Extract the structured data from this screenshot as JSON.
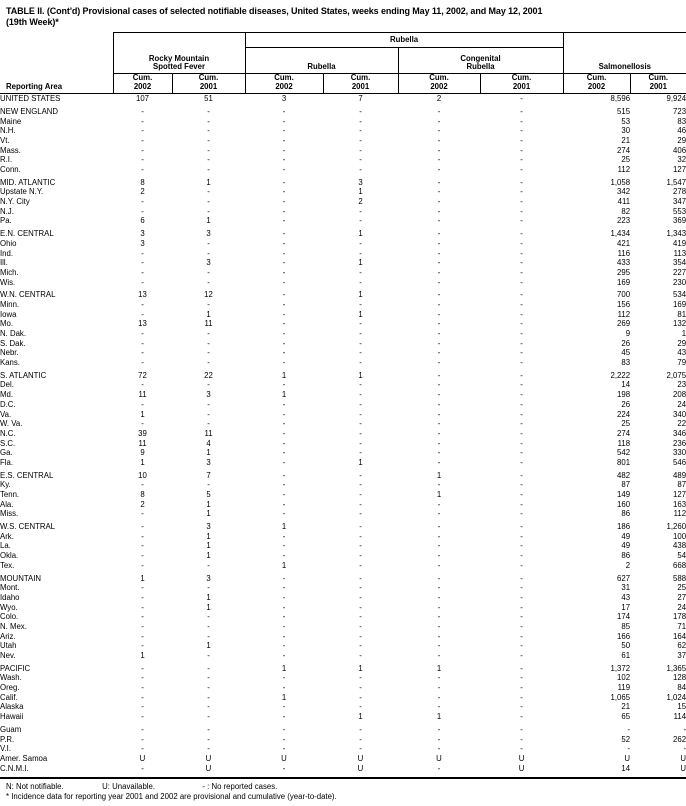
{
  "title": {
    "line1": "TABLE II. (Cont'd) Provisional cases of selected notifiable diseases, United States, weeks ending May 11, 2002, and May 12, 2001",
    "line2": "(19th Week)*"
  },
  "header": {
    "reporting_area": "Reporting Area",
    "rubella_span": "Rubella",
    "rmsf_l1": "Rocky Mountain",
    "rmsf_l2": "Spotted Fever",
    "rubella": "Rubella",
    "crub_l1": "Congenital",
    "crub_l2": "Rubella",
    "salmonellosis": "Salmonellosis",
    "cum": "Cum.",
    "y2002": "2002",
    "y2001": "2001"
  },
  "sections": [
    {
      "rows": [
        {
          "area": "UNITED STATES",
          "values": [
            "107",
            "51",
            "3",
            "7",
            "2",
            "-",
            "8,596",
            "9,924"
          ]
        }
      ]
    },
    {
      "rows": [
        {
          "area": "NEW ENGLAND",
          "values": [
            "-",
            "-",
            "-",
            "-",
            "-",
            "-",
            "515",
            "723"
          ]
        },
        {
          "area": "Maine",
          "values": [
            "-",
            "-",
            "-",
            "-",
            "-",
            "-",
            "53",
            "83"
          ]
        },
        {
          "area": "N.H.",
          "values": [
            "-",
            "-",
            "-",
            "-",
            "-",
            "-",
            "30",
            "46"
          ]
        },
        {
          "area": "Vt.",
          "values": [
            "-",
            "-",
            "-",
            "-",
            "-",
            "-",
            "21",
            "29"
          ]
        },
        {
          "area": "Mass.",
          "values": [
            "-",
            "-",
            "-",
            "-",
            "-",
            "-",
            "274",
            "406"
          ]
        },
        {
          "area": "R.I.",
          "values": [
            "-",
            "-",
            "-",
            "-",
            "-",
            "-",
            "25",
            "32"
          ]
        },
        {
          "area": "Conn.",
          "values": [
            "-",
            "-",
            "-",
            "-",
            "-",
            "-",
            "112",
            "127"
          ]
        }
      ]
    },
    {
      "rows": [
        {
          "area": "MID. ATLANTIC",
          "values": [
            "8",
            "1",
            "-",
            "3",
            "-",
            "-",
            "1,058",
            "1,547"
          ]
        },
        {
          "area": "Upstate N.Y.",
          "values": [
            "2",
            "-",
            "-",
            "1",
            "-",
            "-",
            "342",
            "278"
          ]
        },
        {
          "area": "N.Y. City",
          "values": [
            "-",
            "-",
            "-",
            "2",
            "-",
            "-",
            "411",
            "347"
          ]
        },
        {
          "area": "N.J.",
          "values": [
            "-",
            "-",
            "-",
            "-",
            "-",
            "-",
            "82",
            "553"
          ]
        },
        {
          "area": "Pa.",
          "values": [
            "6",
            "1",
            "-",
            "-",
            "-",
            "-",
            "223",
            "369"
          ]
        }
      ]
    },
    {
      "rows": [
        {
          "area": "E.N. CENTRAL",
          "values": [
            "3",
            "3",
            "-",
            "1",
            "-",
            "-",
            "1,434",
            "1,343"
          ]
        },
        {
          "area": "Ohio",
          "values": [
            "3",
            "-",
            "-",
            "-",
            "-",
            "-",
            "421",
            "419"
          ]
        },
        {
          "area": "Ind.",
          "values": [
            "-",
            "-",
            "-",
            "-",
            "-",
            "-",
            "116",
            "113"
          ]
        },
        {
          "area": "Ill.",
          "values": [
            "-",
            "3",
            "-",
            "1",
            "-",
            "-",
            "433",
            "354"
          ]
        },
        {
          "area": "Mich.",
          "values": [
            "-",
            "-",
            "-",
            "-",
            "-",
            "-",
            "295",
            "227"
          ]
        },
        {
          "area": "Wis.",
          "values": [
            "-",
            "-",
            "-",
            "-",
            "-",
            "-",
            "169",
            "230"
          ]
        }
      ]
    },
    {
      "rows": [
        {
          "area": "W.N. CENTRAL",
          "values": [
            "13",
            "12",
            "-",
            "1",
            "-",
            "-",
            "700",
            "534"
          ]
        },
        {
          "area": "Minn.",
          "values": [
            "-",
            "-",
            "-",
            "-",
            "-",
            "-",
            "156",
            "169"
          ]
        },
        {
          "area": "Iowa",
          "values": [
            "-",
            "1",
            "-",
            "1",
            "-",
            "-",
            "112",
            "81"
          ]
        },
        {
          "area": "Mo.",
          "values": [
            "13",
            "11",
            "-",
            "-",
            "-",
            "-",
            "269",
            "132"
          ]
        },
        {
          "area": "N. Dak.",
          "values": [
            "-",
            "-",
            "-",
            "-",
            "-",
            "-",
            "9",
            "1"
          ]
        },
        {
          "area": "S. Dak.",
          "values": [
            "-",
            "-",
            "-",
            "-",
            "-",
            "-",
            "26",
            "29"
          ]
        },
        {
          "area": "Nebr.",
          "values": [
            "-",
            "-",
            "-",
            "-",
            "-",
            "-",
            "45",
            "43"
          ]
        },
        {
          "area": "Kans.",
          "values": [
            "-",
            "-",
            "-",
            "-",
            "-",
            "-",
            "83",
            "79"
          ]
        }
      ]
    },
    {
      "rows": [
        {
          "area": "S. ATLANTIC",
          "values": [
            "72",
            "22",
            "1",
            "1",
            "-",
            "-",
            "2,222",
            "2,075"
          ]
        },
        {
          "area": "Del.",
          "values": [
            "-",
            "-",
            "-",
            "-",
            "-",
            "-",
            "14",
            "23"
          ]
        },
        {
          "area": "Md.",
          "values": [
            "11",
            "3",
            "1",
            "-",
            "-",
            "-",
            "198",
            "208"
          ]
        },
        {
          "area": "D.C.",
          "values": [
            "-",
            "-",
            "-",
            "-",
            "-",
            "-",
            "26",
            "24"
          ]
        },
        {
          "area": "Va.",
          "values": [
            "1",
            "-",
            "-",
            "-",
            "-",
            "-",
            "224",
            "340"
          ]
        },
        {
          "area": "W. Va.",
          "values": [
            "-",
            "-",
            "-",
            "-",
            "-",
            "-",
            "25",
            "22"
          ]
        },
        {
          "area": "N.C.",
          "values": [
            "39",
            "11",
            "-",
            "-",
            "-",
            "-",
            "274",
            "346"
          ]
        },
        {
          "area": "S.C.",
          "values": [
            "11",
            "4",
            "-",
            "-",
            "-",
            "-",
            "118",
            "236"
          ]
        },
        {
          "area": "Ga.",
          "values": [
            "9",
            "1",
            "-",
            "-",
            "-",
            "-",
            "542",
            "330"
          ]
        },
        {
          "area": "Fla.",
          "values": [
            "1",
            "3",
            "-",
            "1",
            "-",
            "-",
            "801",
            "546"
          ]
        }
      ]
    },
    {
      "rows": [
        {
          "area": "E.S. CENTRAL",
          "values": [
            "10",
            "7",
            "-",
            "-",
            "1",
            "-",
            "482",
            "489"
          ]
        },
        {
          "area": "Ky.",
          "values": [
            "-",
            "-",
            "-",
            "-",
            "-",
            "-",
            "87",
            "87"
          ]
        },
        {
          "area": "Tenn.",
          "values": [
            "8",
            "5",
            "-",
            "-",
            "1",
            "-",
            "149",
            "127"
          ]
        },
        {
          "area": "Ala.",
          "values": [
            "2",
            "1",
            "-",
            "-",
            "-",
            "-",
            "160",
            "163"
          ]
        },
        {
          "area": "Miss.",
          "values": [
            "-",
            "1",
            "-",
            "-",
            "-",
            "-",
            "86",
            "112"
          ]
        }
      ]
    },
    {
      "rows": [
        {
          "area": "W.S. CENTRAL",
          "values": [
            "-",
            "3",
            "1",
            "-",
            "-",
            "-",
            "186",
            "1,260"
          ]
        },
        {
          "area": "Ark.",
          "values": [
            "-",
            "1",
            "-",
            "-",
            "-",
            "-",
            "49",
            "100"
          ]
        },
        {
          "area": "La.",
          "values": [
            "-",
            "1",
            "-",
            "-",
            "-",
            "-",
            "49",
            "438"
          ]
        },
        {
          "area": "Okla.",
          "values": [
            "-",
            "1",
            "-",
            "-",
            "-",
            "-",
            "86",
            "54"
          ]
        },
        {
          "area": "Tex.",
          "values": [
            "-",
            "-",
            "1",
            "-",
            "-",
            "-",
            "2",
            "668"
          ]
        }
      ]
    },
    {
      "rows": [
        {
          "area": "MOUNTAIN",
          "values": [
            "1",
            "3",
            "-",
            "-",
            "-",
            "-",
            "627",
            "588"
          ]
        },
        {
          "area": "Mont.",
          "values": [
            "-",
            "-",
            "-",
            "-",
            "-",
            "-",
            "31",
            "25"
          ]
        },
        {
          "area": "Idaho",
          "values": [
            "-",
            "1",
            "-",
            "-",
            "-",
            "-",
            "43",
            "27"
          ]
        },
        {
          "area": "Wyo.",
          "values": [
            "-",
            "1",
            "-",
            "-",
            "-",
            "-",
            "17",
            "24"
          ]
        },
        {
          "area": "Colo.",
          "values": [
            "-",
            "-",
            "-",
            "-",
            "-",
            "-",
            "174",
            "178"
          ]
        },
        {
          "area": "N. Mex.",
          "values": [
            "-",
            "-",
            "-",
            "-",
            "-",
            "-",
            "85",
            "71"
          ]
        },
        {
          "area": "Ariz.",
          "values": [
            "-",
            "-",
            "-",
            "-",
            "-",
            "-",
            "166",
            "164"
          ]
        },
        {
          "area": "Utah",
          "values": [
            "-",
            "1",
            "-",
            "-",
            "-",
            "-",
            "50",
            "62"
          ]
        },
        {
          "area": "Nev.",
          "values": [
            "1",
            "-",
            "-",
            "-",
            "-",
            "-",
            "61",
            "37"
          ]
        }
      ]
    },
    {
      "rows": [
        {
          "area": "PACIFIC",
          "values": [
            "-",
            "-",
            "1",
            "1",
            "1",
            "-",
            "1,372",
            "1,365"
          ]
        },
        {
          "area": "Wash.",
          "values": [
            "-",
            "-",
            "-",
            "-",
            "-",
            "-",
            "102",
            "128"
          ]
        },
        {
          "area": "Oreg.",
          "values": [
            "-",
            "-",
            "-",
            "-",
            "-",
            "-",
            "119",
            "84"
          ]
        },
        {
          "area": "Calif.",
          "values": [
            "-",
            "-",
            "1",
            "-",
            "-",
            "-",
            "1,065",
            "1,024"
          ]
        },
        {
          "area": "Alaska",
          "values": [
            "-",
            "-",
            "-",
            "-",
            "-",
            "-",
            "21",
            "15"
          ]
        },
        {
          "area": "Hawaii",
          "values": [
            "-",
            "-",
            "-",
            "1",
            "1",
            "-",
            "65",
            "114"
          ]
        }
      ]
    },
    {
      "rows": [
        {
          "area": "Guam",
          "values": [
            "-",
            "-",
            "-",
            "-",
            "-",
            "-",
            "-",
            "-"
          ]
        },
        {
          "area": "P.R.",
          "values": [
            "-",
            "-",
            "-",
            "-",
            "-",
            "-",
            "52",
            "262"
          ]
        },
        {
          "area": "V.I.",
          "values": [
            "-",
            "-",
            "-",
            "-",
            "-",
            "-",
            "-",
            "-"
          ]
        },
        {
          "area": "Amer. Samoa",
          "values": [
            "U",
            "U",
            "U",
            "U",
            "U",
            "U",
            "U",
            "U"
          ]
        },
        {
          "area": "C.N.M.I.",
          "values": [
            "-",
            "U",
            "-",
            "U",
            "-",
            "U",
            "14",
            "U"
          ]
        }
      ]
    }
  ],
  "footnotes": {
    "n": "N: Not notifiable.",
    "u": "U: Unavailable.",
    "dash": "- : No reported cases.",
    "incidence": "* Incidence data for reporting year 2001 and 2002 are provisional and cumulative (year-to-date)."
  }
}
